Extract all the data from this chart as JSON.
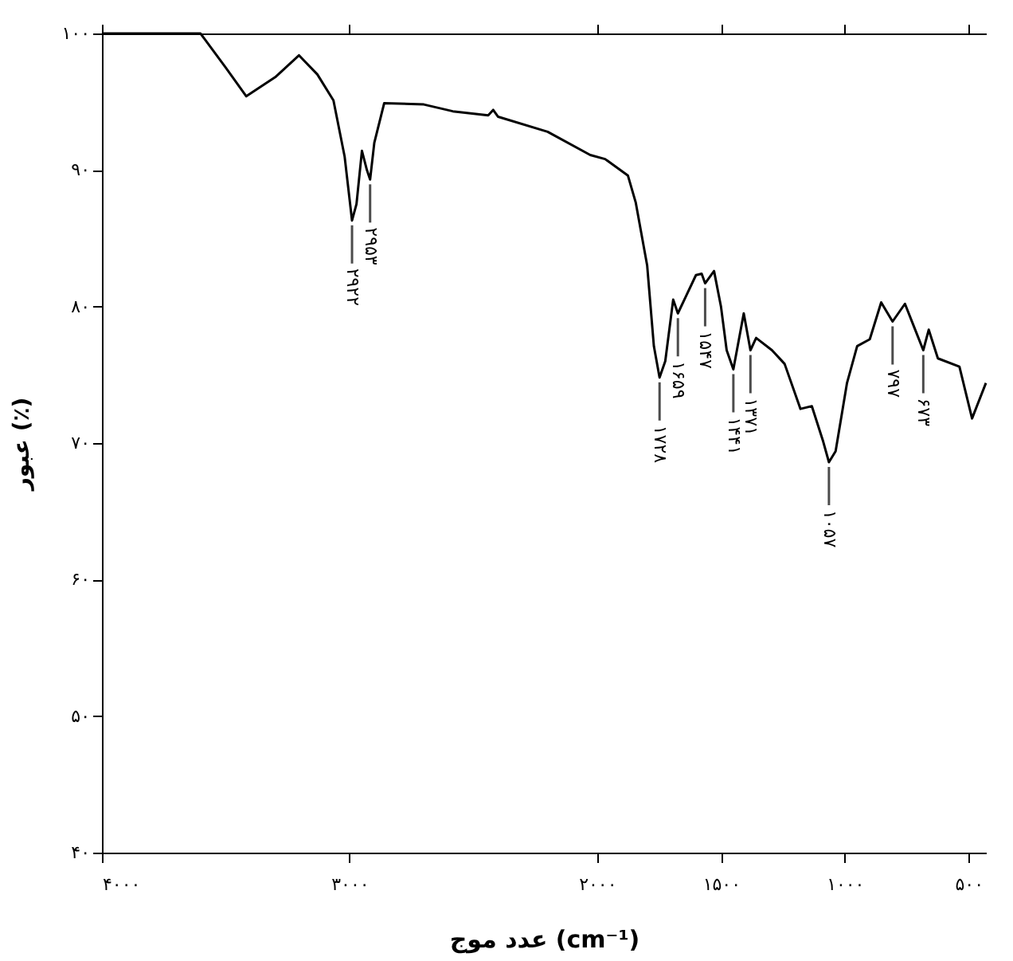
{
  "chart_data": {
    "type": "line",
    "xlabel": "عدد موج (cm⁻¹)",
    "ylabel": "عبور (٪)",
    "x": [
      4000,
      3602,
      3500,
      3417,
      3300,
      3204,
      3130,
      3065,
      3020,
      2990,
      2972,
      2950,
      2930,
      2917,
      2900,
      2860,
      2700,
      2583,
      2440,
      2420,
      2400,
      2200,
      2028,
      1968,
      1876,
      1844,
      1798,
      1771,
      1748,
      1725,
      1693,
      1674,
      1640,
      1601,
      1578,
      1564,
      1528,
      1500,
      1477,
      1450,
      1408,
      1381,
      1358,
      1294,
      1243,
      1179,
      1133,
      1087,
      1064,
      1037,
      991,
      950,
      899,
      853,
      807,
      757,
      720,
      683,
      661,
      624,
      537,
      486,
      430
    ],
    "series": [
      {
        "color": "#000000",
        "values": [
          100,
          100,
          97.5,
          95.4,
          96.8,
          98.4,
          97.0,
          95.1,
          91.0,
          86.3,
          87.5,
          91.4,
          90.0,
          89.3,
          92.0,
          94.9,
          94.8,
          94.3,
          94.0,
          94.4,
          93.9,
          92.8,
          91.1,
          90.8,
          89.6,
          87.6,
          83.0,
          77.1,
          74.8,
          76.0,
          80.5,
          79.5,
          80.8,
          82.3,
          82.4,
          81.7,
          82.6,
          80.0,
          76.8,
          75.4,
          79.5,
          76.8,
          77.7,
          76.8,
          75.8,
          72.5,
          72.7,
          70.1,
          68.6,
          69.4,
          74.4,
          77.1,
          77.6,
          80.3,
          78.9,
          80.2,
          78.5,
          76.8,
          78.3,
          76.2,
          75.6,
          71.8,
          74.4
        ]
      }
    ],
    "xlim": [
      4000,
      430
    ],
    "xticks": [
      {
        "value": 4000,
        "label": "۴۰۰۰"
      },
      {
        "value": 3000,
        "label": "۳۰۰۰"
      },
      {
        "value": 2000,
        "label": "۲۰۰۰"
      },
      {
        "value": 1500,
        "label": "۱۵۰۰"
      },
      {
        "value": 1000,
        "label": "۱۰۰۰"
      },
      {
        "value": 500,
        "label": "۵۰۰"
      }
    ],
    "ylim": [
      40,
      100
    ],
    "yticks": [
      {
        "value": 40,
        "label": "۴۰"
      },
      {
        "value": 50,
        "label": "۵۰"
      },
      {
        "value": 60,
        "label": "۶۰"
      },
      {
        "value": 70,
        "label": "۷۰"
      },
      {
        "value": 80,
        "label": "۸۰"
      },
      {
        "value": 90,
        "label": "۹۰"
      },
      {
        "value": 100,
        "label": "۱۰۰"
      }
    ],
    "annotations": [
      {
        "text": "۲۹۲۲",
        "x": 2990,
        "y": 86.3
      },
      {
        "text": "۲۹۵۳",
        "x": 2917,
        "y": 89.3
      },
      {
        "text": "۱۷۲۸",
        "x": 1748,
        "y": 74.8
      },
      {
        "text": "۱۶۵۹",
        "x": 1674,
        "y": 79.5
      },
      {
        "text": "۱۵۴۷",
        "x": 1564,
        "y": 81.7
      },
      {
        "text": "۱۴۴۱",
        "x": 1450,
        "y": 75.4
      },
      {
        "text": "۱۳۷۱",
        "x": 1381,
        "y": 76.8
      },
      {
        "text": "۱۰۵۷",
        "x": 1064,
        "y": 68.6
      },
      {
        "text": "۷۹۷",
        "x": 807,
        "y": 78.9
      },
      {
        "text": "۶۷۳",
        "x": 683,
        "y": 76.8
      }
    ]
  }
}
